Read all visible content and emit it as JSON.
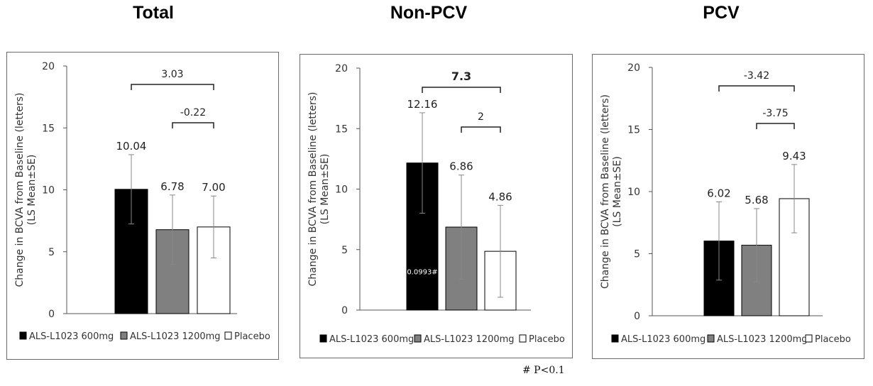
{
  "footnote": "# P<0.1",
  "chart_data": [
    {
      "type": "bar",
      "title": "Total",
      "ylabel_line1": "Change in BCVA from Baseline (letters)",
      "ylabel_line2": "(LS Mean±SE)",
      "ylim": [
        0,
        20
      ],
      "yticks": [
        0,
        5,
        10,
        15,
        20
      ],
      "series": [
        {
          "name": "ALS-L1023 600mg",
          "value": 10.04,
          "label": "10.04",
          "se": 2.8,
          "color": "#000000"
        },
        {
          "name": "ALS-L1023 1200mg",
          "value": 6.78,
          "label": "6.78",
          "se": 2.8,
          "color": "#808080"
        },
        {
          "name": "Placebo",
          "value": 7.0,
          "label": "7.00",
          "se": 2.5,
          "color": "#ffffff"
        }
      ],
      "inner_annotations": [],
      "brackets": [
        {
          "from": 0,
          "to": 2,
          "label": "3.03",
          "bold": false
        },
        {
          "from": 1,
          "to": 2,
          "label": "-0.22",
          "bold": false
        }
      ]
    },
    {
      "type": "bar",
      "title": "Non-PCV",
      "ylabel_line1": "Change in BCVA from Baseline (letters)",
      "ylabel_line2": "(LS Mean±SE)",
      "ylim": [
        0,
        20
      ],
      "yticks": [
        0,
        5,
        10,
        15,
        20
      ],
      "series": [
        {
          "name": "ALS-L1023 600mg",
          "value": 12.16,
          "label": "12.16",
          "se": 4.15,
          "color": "#000000"
        },
        {
          "name": "ALS-L1023 1200mg",
          "value": 6.86,
          "label": "6.86",
          "se": 4.3,
          "color": "#808080"
        },
        {
          "name": "Placebo",
          "value": 4.86,
          "label": "4.86",
          "se": 3.8,
          "color": "#ffffff"
        }
      ],
      "inner_annotations": [
        {
          "bar": 0,
          "text": "0.0993#",
          "y": 3.2
        }
      ],
      "brackets": [
        {
          "from": 0,
          "to": 2,
          "label": "7.3",
          "bold": true
        },
        {
          "from": 1,
          "to": 2,
          "label": "2",
          "bold": false
        }
      ]
    },
    {
      "type": "bar",
      "title": "PCV",
      "ylabel_line1": "Change in BCVA from Baseline (letters)",
      "ylabel_line2": "(LS Mean±SE)",
      "ylim": [
        0,
        20
      ],
      "yticks": [
        0,
        5,
        10,
        15,
        20
      ],
      "series": [
        {
          "name": "ALS-L1023 600mg",
          "value": 6.02,
          "label": "6.02",
          "se": 3.15,
          "color": "#000000"
        },
        {
          "name": "ALS-L1023 1200mg",
          "value": 5.68,
          "label": "5.68",
          "se": 2.95,
          "color": "#808080"
        },
        {
          "name": "Placebo",
          "value": 9.43,
          "label": "9.43",
          "se": 2.75,
          "color": "#ffffff"
        }
      ],
      "inner_annotations": [],
      "brackets": [
        {
          "from": 0,
          "to": 2,
          "label": "-3.42",
          "bold": false
        },
        {
          "from": 1,
          "to": 2,
          "label": "-3.75",
          "bold": false
        }
      ]
    }
  ]
}
